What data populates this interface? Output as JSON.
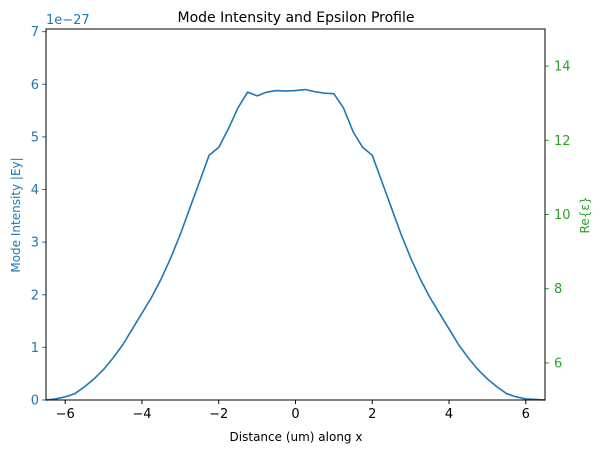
{
  "chart_data": {
    "type": "line",
    "title": "Mode Intensity and Epsilon Profile",
    "xlabel": "Distance (um) along x",
    "ylabel_left": "Mode Intensity |Ey|",
    "ylabel_right": "Re{ε}",
    "offset_label": "1e−27",
    "xlim": [
      -6.5,
      6.5
    ],
    "ylim_left": [
      0,
      7.05
    ],
    "ylim_right": [
      5,
      15
    ],
    "x_ticks": [
      -6,
      -4,
      -2,
      0,
      2,
      4,
      6
    ],
    "x_tick_labels": [
      "−6",
      "−4",
      "−2",
      "0",
      "2",
      "4",
      "6"
    ],
    "y_left_ticks": [
      0,
      1,
      2,
      3,
      4,
      5,
      6,
      7
    ],
    "y_left_tick_labels": [
      "0",
      "1",
      "2",
      "3",
      "4",
      "5",
      "6",
      "7"
    ],
    "y_right_ticks": [
      6,
      8,
      10,
      12,
      14
    ],
    "y_right_tick_labels": [
      "6",
      "8",
      "10",
      "12",
      "14"
    ],
    "colors": {
      "left_axis": "#1f77b4",
      "right_axis": "#2ca02c",
      "series": "#1f77b4"
    },
    "grid": false,
    "series": [
      {
        "axis": "left",
        "x": [
          -6.5,
          -6.25,
          -6.0,
          -5.75,
          -5.5,
          -5.25,
          -5.0,
          -4.75,
          -4.5,
          -4.25,
          -4.0,
          -3.75,
          -3.5,
          -3.25,
          -3.0,
          -2.75,
          -2.5,
          -2.25,
          -2.0,
          -1.75,
          -1.5,
          -1.25,
          -1.0,
          -0.75,
          -0.5,
          -0.25,
          0.0,
          0.25,
          0.5,
          0.75,
          1.0,
          1.25,
          1.5,
          1.75,
          2.0,
          2.25,
          2.5,
          2.75,
          3.0,
          3.25,
          3.5,
          3.75,
          4.0,
          4.25,
          4.5,
          4.75,
          5.0,
          5.25,
          5.5,
          5.75,
          6.0,
          6.25,
          6.5
        ],
        "y": [
          0.0,
          0.02,
          0.06,
          0.12,
          0.25,
          0.4,
          0.58,
          0.8,
          1.05,
          1.35,
          1.65,
          1.95,
          2.3,
          2.7,
          3.15,
          3.65,
          4.15,
          4.65,
          4.8,
          5.15,
          5.55,
          5.85,
          5.78,
          5.85,
          5.88,
          5.87,
          5.88,
          5.9,
          5.86,
          5.83,
          5.82,
          5.55,
          5.1,
          4.8,
          4.65,
          4.15,
          3.65,
          3.15,
          2.7,
          2.3,
          1.95,
          1.65,
          1.35,
          1.05,
          0.8,
          0.58,
          0.4,
          0.25,
          0.12,
          0.06,
          0.02,
          0.01,
          0.0
        ]
      }
    ]
  }
}
